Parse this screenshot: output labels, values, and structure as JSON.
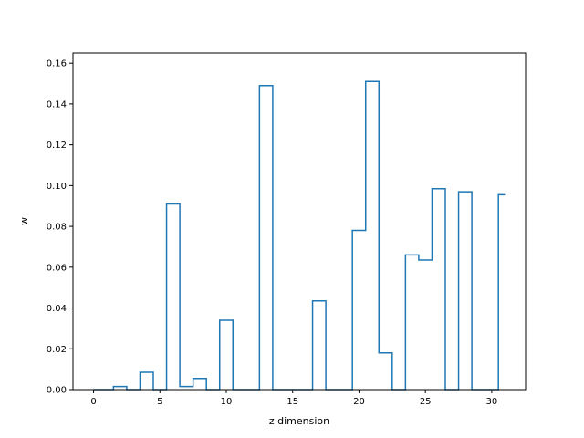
{
  "chart_data": {
    "type": "step",
    "xlabel": "z dimension",
    "ylabel": "w",
    "xlim": [
      -1.55,
      32.55
    ],
    "ylim": [
      0,
      0.165
    ],
    "x_ticks": [
      0,
      5,
      10,
      15,
      20,
      25,
      30
    ],
    "y_ticks": [
      0.0,
      0.02,
      0.04,
      0.06,
      0.08,
      0.1,
      0.12,
      0.14,
      0.16
    ],
    "x_tick_labels": [
      "0",
      "5",
      "10",
      "15",
      "20",
      "25",
      "30"
    ],
    "y_tick_labels": [
      "0.00",
      "0.02",
      "0.04",
      "0.06",
      "0.08",
      "0.10",
      "0.12",
      "0.14",
      "0.16"
    ],
    "step_where": "mid",
    "x": [
      0,
      1,
      2,
      3,
      4,
      5,
      6,
      7,
      8,
      9,
      10,
      11,
      12,
      13,
      14,
      15,
      16,
      17,
      18,
      19,
      20,
      21,
      22,
      23,
      24,
      25,
      26,
      27,
      28,
      29,
      30,
      31
    ],
    "values": [
      0.0,
      0.0,
      0.0015,
      0.0,
      0.0085,
      0.0,
      0.091,
      0.0015,
      0.0055,
      0.0,
      0.034,
      0.0,
      0.0,
      0.149,
      0.0,
      0.0,
      0.0,
      0.0435,
      0.0,
      0.0,
      0.078,
      0.151,
      0.018,
      0.0,
      0.066,
      0.0635,
      0.0985,
      0.0,
      0.097,
      0.0,
      0.0,
      0.0955
    ],
    "line_color": "#1f77b4",
    "grid": false
  }
}
